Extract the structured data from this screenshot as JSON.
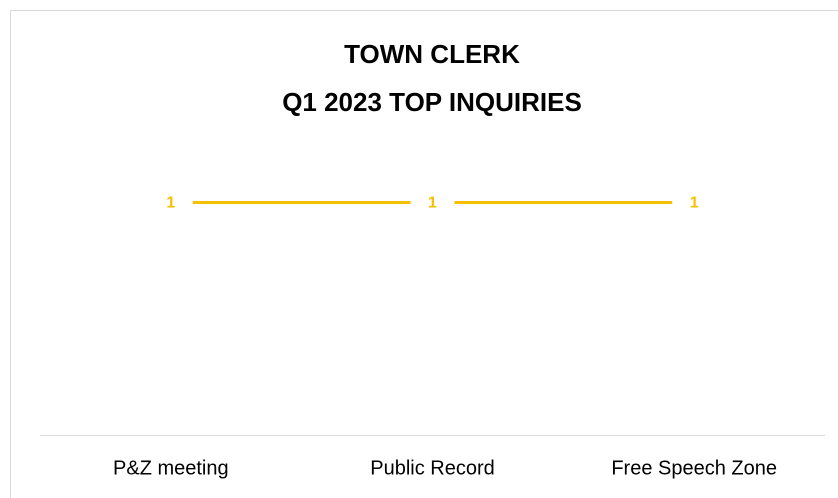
{
  "chart_data": {
    "type": "line",
    "title": "TOWN CLERK",
    "subtitle": "Q1 2023 TOP INQUIRIES",
    "categories": [
      "P&Z meeting",
      "Public Record",
      "Free Speech Zone"
    ],
    "values": [
      1,
      1,
      1
    ],
    "color": "#f5c000",
    "ylim": [
      0,
      1.2
    ]
  }
}
